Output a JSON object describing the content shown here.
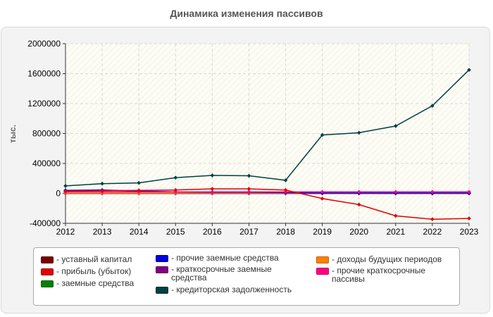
{
  "title": "Динамика изменения пассивов",
  "colors": {
    "panel_bg": "#f3f3f3",
    "plot_bg": "#fdfdf5",
    "grid": "#d8d8d8"
  },
  "chart_data": {
    "type": "line",
    "title": "Динамика изменения пассивов",
    "ylabel": "тыс.",
    "xlabel": "",
    "x": [
      2012,
      2013,
      2014,
      2015,
      2016,
      2017,
      2018,
      2019,
      2020,
      2021,
      2022,
      2023
    ],
    "ylim": [
      -400000,
      2000000
    ],
    "yticks": [
      -400000,
      0,
      400000,
      800000,
      1200000,
      1600000,
      2000000
    ],
    "ytick_labels": [
      "-400000",
      "0",
      "400000",
      "800000",
      "1200000",
      "1600000",
      "2000000"
    ],
    "grid": true,
    "legend_position": "bottom",
    "series": [
      {
        "name": "уставный капитал",
        "color": "#7a0000",
        "values": [
          10,
          10,
          10,
          10,
          10,
          10,
          10,
          10,
          10,
          10,
          10,
          10
        ]
      },
      {
        "name": "прибыль (убыток)",
        "color": "#e00000",
        "values": [
          30000,
          35000,
          40000,
          45000,
          60000,
          60000,
          45000,
          -70000,
          -150000,
          -300000,
          -345000,
          -335000
        ]
      },
      {
        "name": "заемные средства",
        "color": "#008000",
        "values": [
          0,
          0,
          0,
          0,
          0,
          0,
          0,
          0,
          0,
          0,
          0,
          0
        ]
      },
      {
        "name": "прочие заемные средства",
        "color": "#0000e0",
        "values": [
          40000,
          45000,
          30000,
          20000,
          15000,
          15000,
          10000,
          5000,
          5000,
          5000,
          5000,
          5000
        ]
      },
      {
        "name": "краткосрочные заемные средства",
        "color": "#800080",
        "values": [
          0,
          0,
          0,
          0,
          0,
          0,
          0,
          0,
          0,
          0,
          0,
          0
        ]
      },
      {
        "name": "кредиторская задолженность",
        "color": "#004040",
        "values": [
          100000,
          130000,
          140000,
          210000,
          240000,
          235000,
          175000,
          780000,
          810000,
          900000,
          1170000,
          1650000
        ]
      },
      {
        "name": "доходы будущих периодов",
        "color": "#ff8000",
        "values": [
          5000,
          5000,
          5000,
          5000,
          5000,
          5000,
          5000,
          5000,
          5000,
          5000,
          5000,
          5000
        ]
      },
      {
        "name": "прочие краткосрочные пассивы",
        "color": "#ff0080",
        "values": [
          20000,
          20000,
          20000,
          20000,
          20000,
          20000,
          20000,
          20000,
          20000,
          20000,
          20000,
          20000
        ]
      }
    ]
  },
  "legend": {
    "items": [
      {
        "label": "уставный капитал",
        "color": "#7a0000"
      },
      {
        "label": "прибыль (убыток)",
        "color": "#e00000"
      },
      {
        "label": "заемные средства",
        "color": "#008000"
      },
      {
        "label": "прочие заемные средства",
        "color": "#0000e0"
      },
      {
        "label": "краткосрочные заемные средства",
        "color": "#800080"
      },
      {
        "label": "кредиторская задолженность",
        "color": "#004040"
      },
      {
        "label": "доходы будущих периодов",
        "color": "#ff8000"
      },
      {
        "label": "прочие краткосрочные пассивы",
        "color": "#ff0080"
      }
    ]
  }
}
